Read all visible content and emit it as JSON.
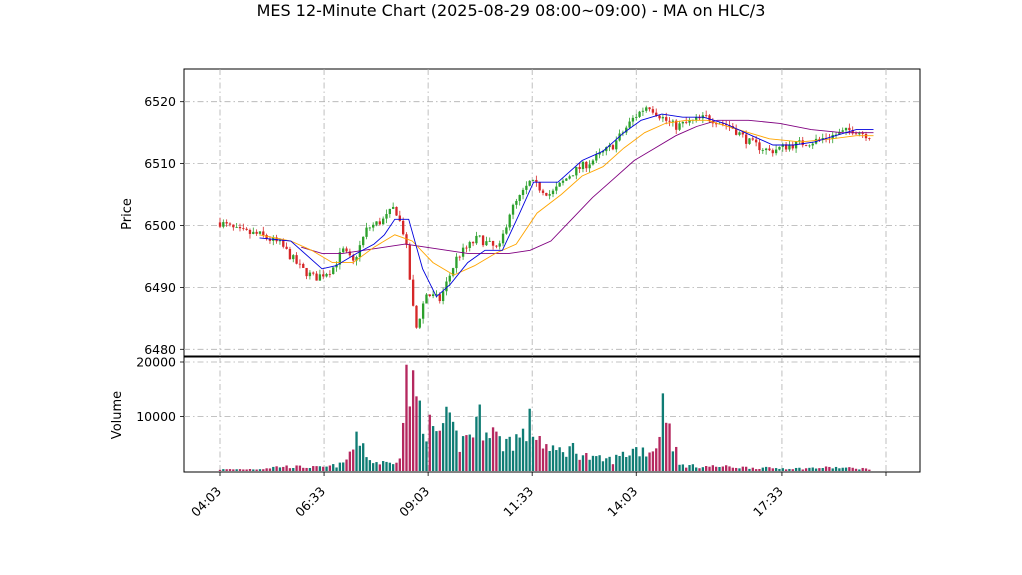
{
  "chart_data": {
    "type": "candlestick",
    "title": "MES 12-Minute Chart (2025-08-29 08:00~09:00) - MA on HLC/3",
    "price_panel": {
      "ylabel": "Price",
      "ylim": [
        6479,
        6523
      ],
      "yticks": [
        6480,
        6490,
        6500,
        6510,
        6520
      ]
    },
    "volume_panel": {
      "ylabel": "Volume",
      "ylim": [
        0,
        20000
      ],
      "yticks": [
        10000,
        20000
      ]
    },
    "x_ticks": [
      "04:03",
      "06:33",
      "09:03",
      "11:33",
      "14:03",
      "17:33"
    ],
    "grid": true,
    "colors": {
      "up": "#2ca02c",
      "down": "#d62728",
      "volume_up": "#0f7c74",
      "volume_down": "#b5285f",
      "ma_fast": "#0000dd",
      "ma_mid": "#ffa500",
      "ma_slow": "#800080"
    },
    "candles_per_hour_approx": 5,
    "price_path": [
      {
        "t": "04:03",
        "price": 6500.5
      },
      {
        "t": "04:30",
        "price": 6499.0
      },
      {
        "t": "05:00",
        "price": 6498.5
      },
      {
        "t": "05:30",
        "price": 6497.0
      },
      {
        "t": "06:00",
        "price": 6493.0
      },
      {
        "t": "06:20",
        "price": 6491.5
      },
      {
        "t": "06:45",
        "price": 6493.0
      },
      {
        "t": "07:00",
        "price": 6496.0
      },
      {
        "t": "07:15",
        "price": 6494.0
      },
      {
        "t": "07:35",
        "price": 6499.5
      },
      {
        "t": "08:00",
        "price": 6501.0
      },
      {
        "t": "08:15",
        "price": 6503.0
      },
      {
        "t": "08:30",
        "price": 6498.0
      },
      {
        "t": "08:45",
        "price": 6483.0
      },
      {
        "t": "09:00",
        "price": 6489.0
      },
      {
        "t": "09:20",
        "price": 6488.0
      },
      {
        "t": "09:45",
        "price": 6495.0
      },
      {
        "t": "10:15",
        "price": 6498.0
      },
      {
        "t": "10:45",
        "price": 6496.0
      },
      {
        "t": "11:00",
        "price": 6502.0
      },
      {
        "t": "11:30",
        "price": 6507.0
      },
      {
        "t": "12:00",
        "price": 6505.0
      },
      {
        "t": "12:30",
        "price": 6508.5
      },
      {
        "t": "13:00",
        "price": 6510.5
      },
      {
        "t": "13:30",
        "price": 6513.0
      },
      {
        "t": "14:00",
        "price": 6517.5
      },
      {
        "t": "14:20",
        "price": 6519.5
      },
      {
        "t": "14:45",
        "price": 6517.0
      },
      {
        "t": "15:00",
        "price": 6516.0
      },
      {
        "t": "15:45",
        "price": 6517.5
      },
      {
        "t": "16:20",
        "price": 6516.0
      },
      {
        "t": "16:45",
        "price": 6513.5
      },
      {
        "t": "17:15",
        "price": 6512.0
      },
      {
        "t": "17:45",
        "price": 6513.0
      },
      {
        "t": "18:15",
        "price": 6513.5
      },
      {
        "t": "18:45",
        "price": 6514.5
      },
      {
        "t": "19:15",
        "price": 6515.5
      },
      {
        "t": "19:40",
        "price": 6514.5
      }
    ],
    "ma_fast": [
      {
        "t": "05:00",
        "price": 6498.0
      },
      {
        "t": "05:45",
        "price": 6497.5
      },
      {
        "t": "06:30",
        "price": 6493.0
      },
      {
        "t": "06:50",
        "price": 6493.5
      },
      {
        "t": "07:20",
        "price": 6495.5
      },
      {
        "t": "07:45",
        "price": 6497.0
      },
      {
        "t": "08:00",
        "price": 6498.5
      },
      {
        "t": "08:15",
        "price": 6501.0
      },
      {
        "t": "08:35",
        "price": 6501.0
      },
      {
        "t": "08:55",
        "price": 6493.0
      },
      {
        "t": "09:15",
        "price": 6488.5
      },
      {
        "t": "09:35",
        "price": 6490.5
      },
      {
        "t": "10:00",
        "price": 6494.0
      },
      {
        "t": "10:25",
        "price": 6496.0
      },
      {
        "t": "10:50",
        "price": 6496.0
      },
      {
        "t": "11:15",
        "price": 6502.0
      },
      {
        "t": "11:35",
        "price": 6507.0
      },
      {
        "t": "11:50",
        "price": 6507.0
      },
      {
        "t": "12:10",
        "price": 6507.0
      },
      {
        "t": "12:45",
        "price": 6510.5
      },
      {
        "t": "13:15",
        "price": 6512.0
      },
      {
        "t": "13:45",
        "price": 6515.0
      },
      {
        "t": "14:10",
        "price": 6517.0
      },
      {
        "t": "14:40",
        "price": 6518.0
      },
      {
        "t": "15:10",
        "price": 6517.5
      },
      {
        "t": "15:40",
        "price": 6517.5
      },
      {
        "t": "16:10",
        "price": 6516.5
      },
      {
        "t": "16:40",
        "price": 6515.0
      },
      {
        "t": "17:20",
        "price": 6513.0
      },
      {
        "t": "17:50",
        "price": 6513.0
      },
      {
        "t": "18:20",
        "price": 6513.5
      },
      {
        "t": "18:50",
        "price": 6514.5
      },
      {
        "t": "19:20",
        "price": 6515.5
      },
      {
        "t": "19:45",
        "price": 6515.5
      }
    ],
    "ma_mid": [
      {
        "t": "05:00",
        "price": 6498.5
      },
      {
        "t": "05:45",
        "price": 6497.5
      },
      {
        "t": "06:15",
        "price": 6496.0
      },
      {
        "t": "06:45",
        "price": 6494.0
      },
      {
        "t": "07:15",
        "price": 6494.0
      },
      {
        "t": "07:45",
        "price": 6496.5
      },
      {
        "t": "08:15",
        "price": 6498.5
      },
      {
        "t": "08:40",
        "price": 6497.5
      },
      {
        "t": "09:10",
        "price": 6494.0
      },
      {
        "t": "09:40",
        "price": 6492.0
      },
      {
        "t": "10:10",
        "price": 6493.5
      },
      {
        "t": "10:40",
        "price": 6495.5
      },
      {
        "t": "11:10",
        "price": 6497.0
      },
      {
        "t": "11:40",
        "price": 6502.0
      },
      {
        "t": "12:15",
        "price": 6505.0
      },
      {
        "t": "12:45",
        "price": 6508.0
      },
      {
        "t": "13:15",
        "price": 6509.5
      },
      {
        "t": "13:45",
        "price": 6512.5
      },
      {
        "t": "14:15",
        "price": 6515.0
      },
      {
        "t": "14:45",
        "price": 6516.5
      },
      {
        "t": "15:15",
        "price": 6517.0
      },
      {
        "t": "15:45",
        "price": 6517.0
      },
      {
        "t": "16:30",
        "price": 6515.5
      },
      {
        "t": "17:15",
        "price": 6514.0
      },
      {
        "t": "18:00",
        "price": 6513.5
      },
      {
        "t": "18:45",
        "price": 6514.0
      },
      {
        "t": "19:20",
        "price": 6514.5
      },
      {
        "t": "19:45",
        "price": 6514.5
      }
    ],
    "ma_slow": [
      {
        "t": "06:00",
        "price": 6496.5
      },
      {
        "t": "06:30",
        "price": 6495.5
      },
      {
        "t": "07:00",
        "price": 6495.5
      },
      {
        "t": "07:30",
        "price": 6496.0
      },
      {
        "t": "08:00",
        "price": 6496.5
      },
      {
        "t": "08:30",
        "price": 6497.0
      },
      {
        "t": "09:00",
        "price": 6496.5
      },
      {
        "t": "09:30",
        "price": 6496.0
      },
      {
        "t": "10:00",
        "price": 6495.5
      },
      {
        "t": "10:30",
        "price": 6495.5
      },
      {
        "t": "11:00",
        "price": 6495.5
      },
      {
        "t": "11:30",
        "price": 6496.0
      },
      {
        "t": "12:00",
        "price": 6497.5
      },
      {
        "t": "12:30",
        "price": 6501.0
      },
      {
        "t": "13:00",
        "price": 6504.5
      },
      {
        "t": "13:30",
        "price": 6507.5
      },
      {
        "t": "14:00",
        "price": 6510.5
      },
      {
        "t": "14:30",
        "price": 6512.5
      },
      {
        "t": "15:00",
        "price": 6514.5
      },
      {
        "t": "15:30",
        "price": 6516.0
      },
      {
        "t": "16:00",
        "price": 6517.0
      },
      {
        "t": "16:45",
        "price": 6517.0
      },
      {
        "t": "17:30",
        "price": 6516.5
      },
      {
        "t": "18:15",
        "price": 6515.5
      },
      {
        "t": "19:00",
        "price": 6515.0
      },
      {
        "t": "19:45",
        "price": 6515.0
      }
    ],
    "volume_path": [
      {
        "t": "04:03",
        "volume": 300
      },
      {
        "t": "05:00",
        "volume": 400
      },
      {
        "t": "05:30",
        "volume": 900
      },
      {
        "t": "06:30",
        "volume": 700
      },
      {
        "t": "07:00",
        "volume": 1300
      },
      {
        "t": "07:25",
        "volume": 6700
      },
      {
        "t": "07:40",
        "volume": 1800
      },
      {
        "t": "08:10",
        "volume": 1500
      },
      {
        "t": "08:25",
        "volume": 4000
      },
      {
        "t": "08:30",
        "volume": 18700
      },
      {
        "t": "08:40",
        "volume": 15200
      },
      {
        "t": "08:55",
        "volume": 11500
      },
      {
        "t": "09:10",
        "volume": 6900
      },
      {
        "t": "09:30",
        "volume": 9200
      },
      {
        "t": "09:50",
        "volume": 5300
      },
      {
        "t": "10:15",
        "volume": 9800
      },
      {
        "t": "10:30",
        "volume": 10000
      },
      {
        "t": "10:45",
        "volume": 5600
      },
      {
        "t": "11:20",
        "volume": 6800
      },
      {
        "t": "11:30",
        "volume": 9200
      },
      {
        "t": "12:00",
        "volume": 3600
      },
      {
        "t": "12:30",
        "volume": 4500
      },
      {
        "t": "13:00",
        "volume": 2300
      },
      {
        "t": "13:30",
        "volume": 2200
      },
      {
        "t": "14:00",
        "volume": 4300
      },
      {
        "t": "14:30",
        "volume": 4000
      },
      {
        "t": "14:45",
        "volume": 15200
      },
      {
        "t": "14:50",
        "volume": 9400
      },
      {
        "t": "15:05",
        "volume": 1200
      },
      {
        "t": "15:30",
        "volume": 900
      },
      {
        "t": "16:00",
        "volume": 900
      },
      {
        "t": "17:00",
        "volume": 600
      },
      {
        "t": "18:00",
        "volume": 500
      },
      {
        "t": "18:45",
        "volume": 700
      },
      {
        "t": "19:45",
        "volume": 400
      }
    ]
  }
}
